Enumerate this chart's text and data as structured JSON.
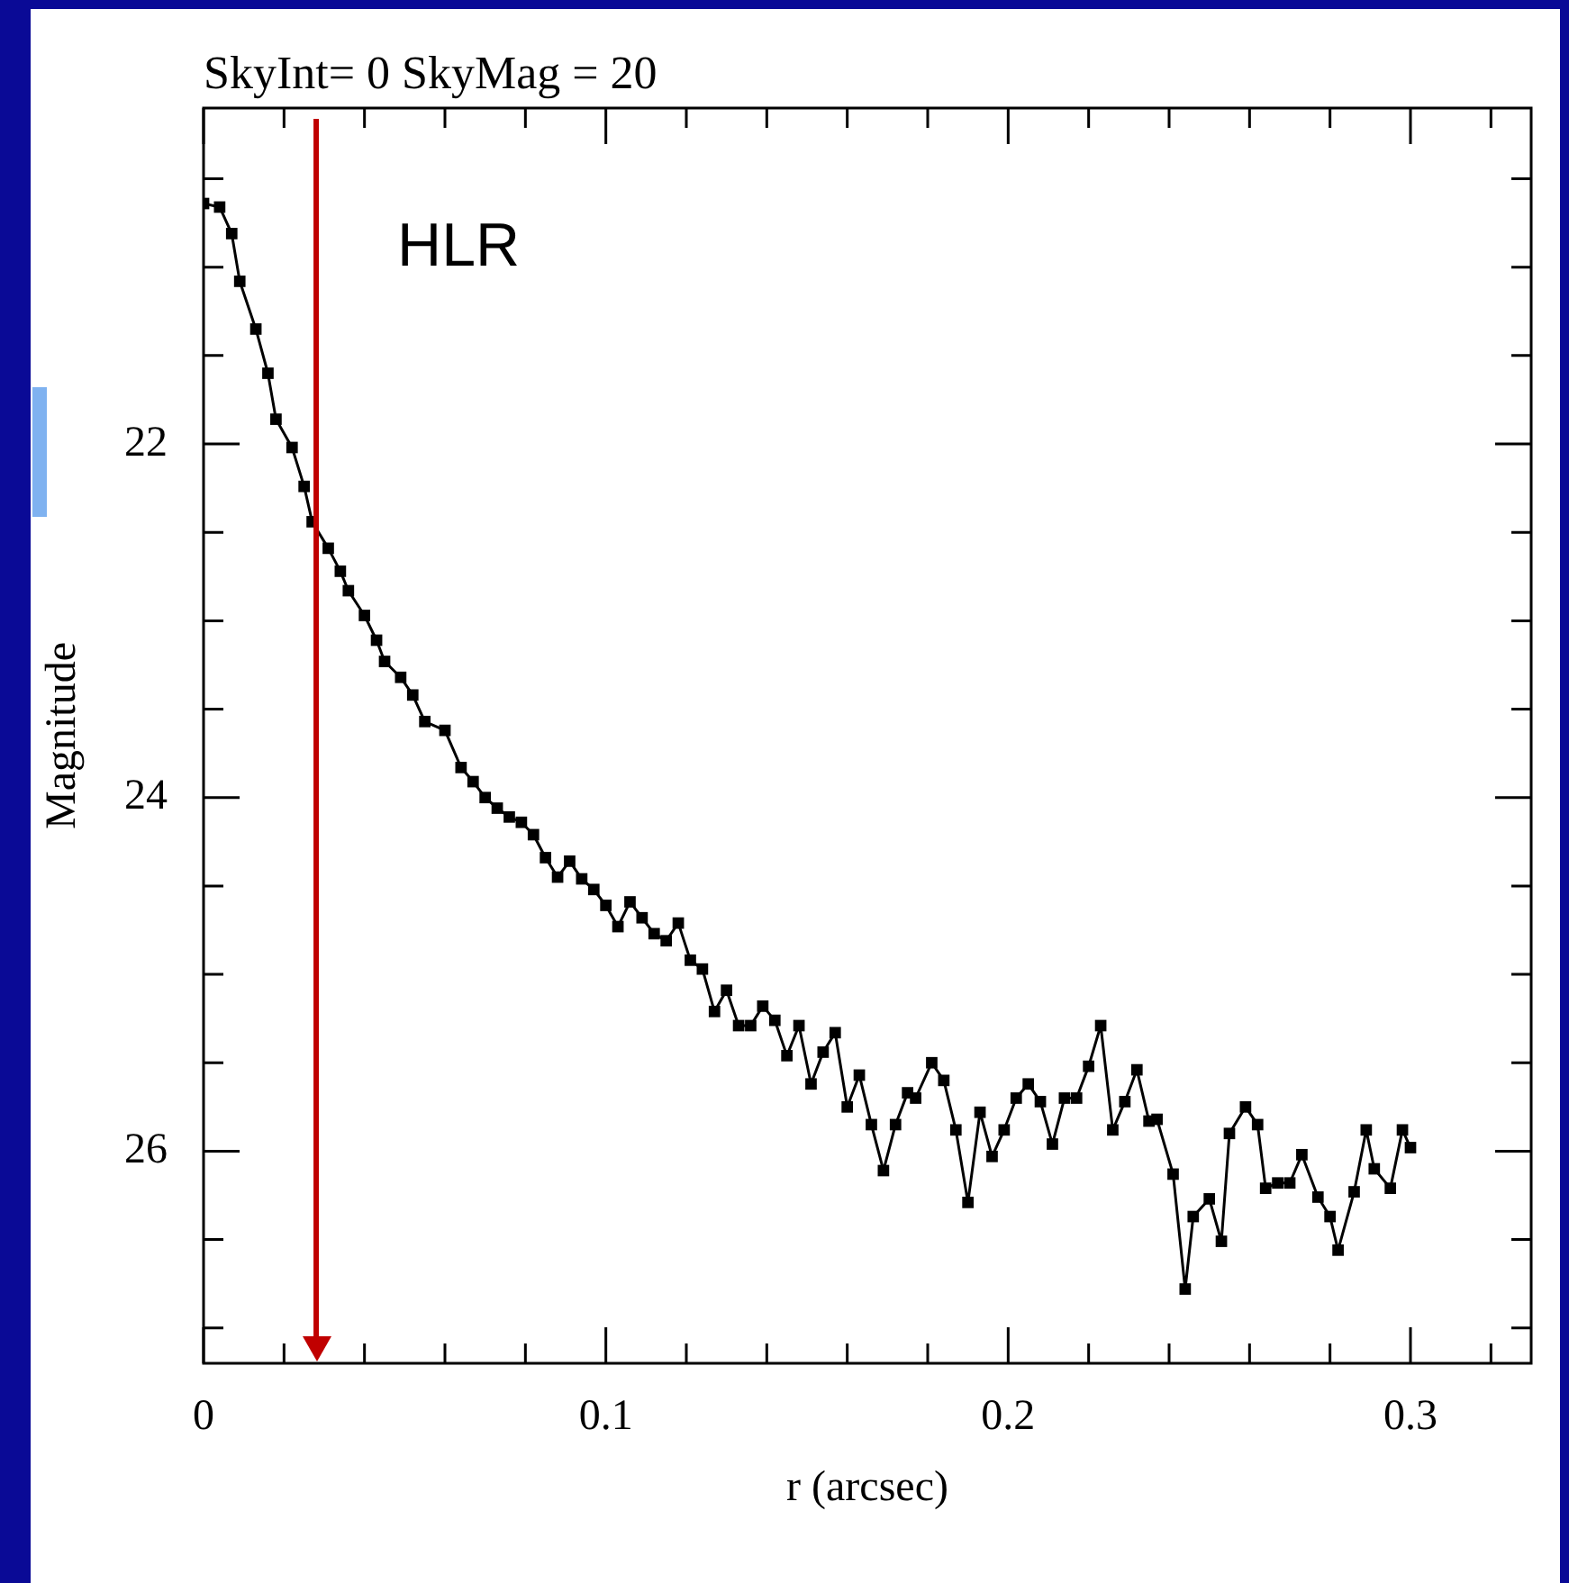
{
  "chart_data": {
    "type": "line",
    "title": "SkyInt= 0 SkyMag = 20",
    "xlabel": "r (arcsec)",
    "ylabel": "Magnitude",
    "xlim": [
      0,
      0.33
    ],
    "ylim": [
      27.2,
      20.1
    ],
    "xticks": [
      0,
      {
        "value": 0.02,
        "label": null
      },
      {
        "value": 0.04,
        "label": null
      },
      {
        "value": 0.06,
        "label": null
      },
      {
        "value": 0.08,
        "label": null
      },
      0.1,
      {
        "value": 0.12,
        "label": null
      },
      {
        "value": 0.14,
        "label": null
      },
      {
        "value": 0.16,
        "label": null
      },
      {
        "value": 0.18,
        "label": null
      },
      0.2,
      {
        "value": 0.22,
        "label": null
      },
      {
        "value": 0.24,
        "label": null
      },
      {
        "value": 0.26,
        "label": null
      },
      {
        "value": 0.28,
        "label": null
      },
      0.3,
      {
        "value": 0.32,
        "label": null
      }
    ],
    "yticks": [
      {
        "value": 20.5,
        "label": null
      },
      {
        "value": 21,
        "label": null
      },
      {
        "value": 21.5,
        "label": null
      },
      22,
      {
        "value": 22.5,
        "label": null
      },
      {
        "value": 23,
        "label": null
      },
      {
        "value": 23.5,
        "label": null
      },
      24,
      {
        "value": 24.5,
        "label": null
      },
      {
        "value": 25,
        "label": null
      },
      {
        "value": 25.5,
        "label": null
      },
      26,
      {
        "value": 26.5,
        "label": null
      },
      {
        "value": 27,
        "label": null
      }
    ],
    "grid": false,
    "legend": false,
    "marker": "square",
    "line_style": "solid",
    "ref_lines": [
      {
        "axis": "x",
        "value": 0.028,
        "label": "HLR",
        "color": "#c00000"
      }
    ],
    "series": [
      {
        "color": "#000000",
        "x": [
          0,
          0.004,
          0.007,
          0.009,
          0.013,
          0.016,
          0.018,
          0.022,
          0.025,
          0.027,
          0.031,
          0.034,
          0.036,
          0.04,
          0.043,
          0.045,
          0.049,
          0.052,
          0.055,
          0.06,
          0.064,
          0.067,
          0.07,
          0.073,
          0.076,
          0.079,
          0.082,
          0.085,
          0.088,
          0.091,
          0.094,
          0.097,
          0.1,
          0.103,
          0.106,
          0.109,
          0.112,
          0.115,
          0.118,
          0.121,
          0.124,
          0.127,
          0.13,
          0.133,
          0.136,
          0.139,
          0.142,
          0.145,
          0.148,
          0.151,
          0.154,
          0.157,
          0.16,
          0.163,
          0.166,
          0.169,
          0.172,
          0.175,
          0.177,
          0.181,
          0.184,
          0.187,
          0.19,
          0.193,
          0.196,
          0.199,
          0.202,
          0.205,
          0.208,
          0.211,
          0.214,
          0.217,
          0.22,
          0.223,
          0.226,
          0.229,
          0.232,
          0.235,
          0.237,
          0.241,
          0.244,
          0.246,
          0.25,
          0.253,
          0.255,
          0.259,
          0.262,
          0.264,
          0.267,
          0.27,
          0.273,
          0.277,
          0.28,
          0.282,
          0.286,
          0.289,
          0.291,
          0.295,
          0.298,
          0.3
        ],
        "values": [
          20.64,
          20.66,
          20.81,
          21.08,
          21.35,
          21.6,
          21.86,
          22.02,
          22.24,
          22.44,
          22.59,
          22.72,
          22.83,
          22.97,
          23.11,
          23.23,
          23.32,
          23.42,
          23.57,
          23.62,
          23.83,
          23.91,
          24.0,
          24.06,
          24.11,
          24.14,
          24.21,
          24.34,
          24.45,
          24.36,
          24.46,
          24.52,
          24.61,
          24.73,
          24.59,
          24.68,
          24.77,
          24.81,
          24.71,
          24.92,
          24.97,
          25.21,
          25.09,
          25.29,
          25.29,
          25.18,
          25.26,
          25.46,
          25.29,
          25.62,
          25.44,
          25.33,
          25.75,
          25.57,
          25.85,
          26.11,
          25.85,
          25.67,
          25.7,
          25.5,
          25.6,
          25.88,
          26.29,
          25.78,
          26.03,
          25.88,
          25.7,
          25.62,
          25.72,
          25.96,
          25.7,
          25.7,
          25.52,
          25.29,
          25.88,
          25.72,
          25.54,
          25.83,
          25.82,
          26.13,
          26.78,
          26.37,
          26.27,
          26.51,
          25.9,
          25.75,
          25.85,
          26.21,
          26.18,
          26.18,
          26.02,
          26.26,
          26.37,
          26.56,
          26.23,
          25.88,
          26.1,
          26.21,
          25.88,
          25.98
        ]
      }
    ]
  }
}
